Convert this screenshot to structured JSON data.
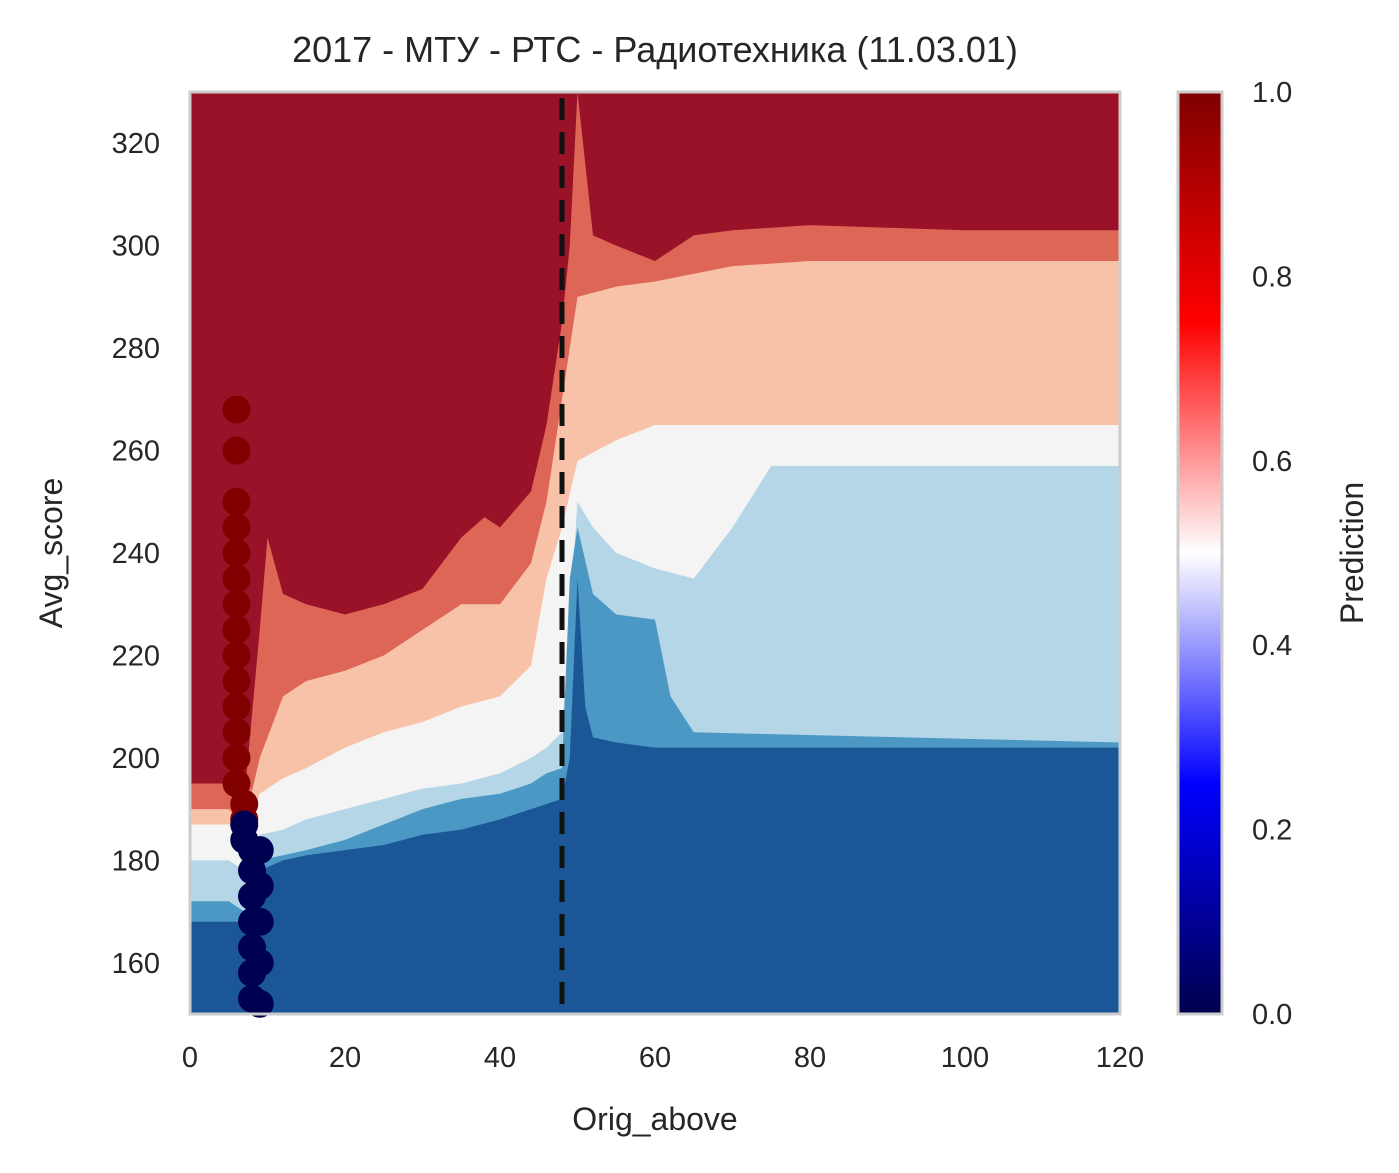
{
  "chart_data": {
    "type": "heatmap",
    "title": "2017 - МТУ - РТС - Радиотехника (11.03.01)",
    "xlabel": "Orig_above",
    "ylabel": "Avg_score",
    "xlim": [
      0,
      120
    ],
    "ylim": [
      150,
      330
    ],
    "x_ticks": [
      0,
      20,
      40,
      60,
      80,
      100,
      120
    ],
    "y_ticks": [
      160,
      180,
      200,
      220,
      240,
      260,
      280,
      300,
      320
    ],
    "grid": false,
    "threshold_line": {
      "x": 48,
      "style": "dashed",
      "color": "#111111"
    },
    "colorbar": {
      "label": "Prediction",
      "range": [
        0.0,
        1.0
      ],
      "ticks": [
        "0.0",
        "0.2",
        "0.4",
        "0.6",
        "0.8",
        "1.0"
      ],
      "colormap": "seismic"
    },
    "levels": [
      {
        "name": "very_low",
        "color": "#1b5797",
        "min": 0.0,
        "max": 0.2
      },
      {
        "name": "low",
        "color": "#4b98c4",
        "min": 0.2,
        "max": 0.35
      },
      {
        "name": "mid_low",
        "color": "#b5d6e7",
        "min": 0.35,
        "max": 0.45
      },
      {
        "name": "mid",
        "color": "#f4f4f4",
        "min": 0.45,
        "max": 0.55
      },
      {
        "name": "mid_high",
        "color": "#f8c2a9",
        "min": 0.55,
        "max": 0.65
      },
      {
        "name": "high",
        "color": "#de6656",
        "min": 0.65,
        "max": 0.8
      },
      {
        "name": "very_high",
        "color": "#9a1228",
        "min": 0.8,
        "max": 1.0
      }
    ],
    "boundaries": {
      "red_upper": [
        [
          0,
          195
        ],
        [
          5,
          195
        ],
        [
          7,
          192
        ],
        [
          9,
          225
        ],
        [
          10,
          243
        ],
        [
          12,
          232
        ],
        [
          15,
          230
        ],
        [
          20,
          228
        ],
        [
          25,
          230
        ],
        [
          30,
          233
        ],
        [
          35,
          243
        ],
        [
          38,
          247
        ],
        [
          40,
          245
        ],
        [
          44,
          252
        ],
        [
          46,
          265
        ],
        [
          47,
          275
        ],
        [
          48,
          285
        ],
        [
          49,
          300
        ],
        [
          50,
          330
        ]
      ],
      "red_upper_right": [
        [
          50,
          330
        ],
        [
          52,
          302
        ],
        [
          55,
          300
        ],
        [
          60,
          297
        ],
        [
          65,
          302
        ],
        [
          70,
          303
        ],
        [
          80,
          304
        ],
        [
          100,
          303
        ],
        [
          120,
          303
        ]
      ],
      "salmon_upper": [
        [
          0,
          190
        ],
        [
          5,
          190
        ],
        [
          7,
          187
        ],
        [
          9,
          200
        ],
        [
          12,
          212
        ],
        [
          15,
          215
        ],
        [
          20,
          217
        ],
        [
          25,
          220
        ],
        [
          30,
          225
        ],
        [
          35,
          230
        ],
        [
          40,
          230
        ],
        [
          44,
          238
        ],
        [
          46,
          250
        ],
        [
          48,
          270
        ],
        [
          50,
          290
        ],
        [
          55,
          292
        ],
        [
          60,
          293
        ],
        [
          70,
          296
        ],
        [
          80,
          297
        ],
        [
          100,
          297
        ],
        [
          120,
          297
        ]
      ],
      "white_upper": [
        [
          0,
          187
        ],
        [
          5,
          187
        ],
        [
          7,
          184
        ],
        [
          9,
          193
        ],
        [
          12,
          196
        ],
        [
          15,
          198
        ],
        [
          20,
          202
        ],
        [
          25,
          205
        ],
        [
          30,
          207
        ],
        [
          35,
          210
        ],
        [
          40,
          212
        ],
        [
          44,
          218
        ],
        [
          46,
          235
        ],
        [
          48,
          245
        ],
        [
          50,
          258
        ],
        [
          55,
          262
        ],
        [
          60,
          265
        ],
        [
          70,
          265
        ],
        [
          80,
          265
        ],
        [
          90,
          265
        ],
        [
          100,
          265
        ],
        [
          120,
          265
        ]
      ],
      "lightblue_upper": [
        [
          0,
          180
        ],
        [
          5,
          180
        ],
        [
          7,
          178
        ],
        [
          9,
          185
        ],
        [
          12,
          186
        ],
        [
          15,
          188
        ],
        [
          20,
          190
        ],
        [
          25,
          192
        ],
        [
          30,
          194
        ],
        [
          35,
          195
        ],
        [
          40,
          197
        ],
        [
          44,
          200
        ],
        [
          46,
          202
        ],
        [
          48,
          205
        ],
        [
          50,
          250
        ],
        [
          52,
          245
        ],
        [
          55,
          240
        ],
        [
          60,
          237
        ],
        [
          65,
          235
        ],
        [
          70,
          245
        ],
        [
          75,
          257
        ],
        [
          100,
          257
        ],
        [
          120,
          257
        ]
      ],
      "blue_upper": [
        [
          0,
          172
        ],
        [
          5,
          172
        ],
        [
          7,
          170
        ],
        [
          9,
          180
        ],
        [
          12,
          181
        ],
        [
          15,
          182
        ],
        [
          20,
          184
        ],
        [
          25,
          187
        ],
        [
          30,
          190
        ],
        [
          35,
          192
        ],
        [
          40,
          193
        ],
        [
          44,
          195
        ],
        [
          46,
          197
        ],
        [
          48,
          198
        ],
        [
          49,
          235
        ],
        [
          50,
          245
        ],
        [
          52,
          232
        ],
        [
          55,
          228
        ],
        [
          60,
          227
        ],
        [
          62,
          212
        ],
        [
          65,
          205
        ],
        [
          120,
          203
        ]
      ],
      "navy_upper": [
        [
          0,
          168
        ],
        [
          5,
          168
        ],
        [
          7,
          168
        ],
        [
          9,
          178
        ],
        [
          12,
          180
        ],
        [
          15,
          181
        ],
        [
          20,
          182
        ],
        [
          25,
          183
        ],
        [
          30,
          185
        ],
        [
          35,
          186
        ],
        [
          40,
          188
        ],
        [
          44,
          190
        ],
        [
          46,
          191
        ],
        [
          48,
          192
        ],
        [
          49,
          200
        ],
        [
          50,
          235
        ],
        [
          51,
          210
        ],
        [
          52,
          204
        ],
        [
          55,
          203
        ],
        [
          60,
          202
        ],
        [
          120,
          202
        ]
      ]
    },
    "scatter": {
      "series": [
        {
          "name": "positive",
          "color": "#800000",
          "points": [
            [
              6,
              268
            ],
            [
              6,
              260
            ],
            [
              6,
              250
            ],
            [
              6,
              245
            ],
            [
              6,
              240
            ],
            [
              6,
              235
            ],
            [
              6,
              230
            ],
            [
              6,
              225
            ],
            [
              6,
              220
            ],
            [
              6,
              215
            ],
            [
              6,
              210
            ],
            [
              6,
              205
            ],
            [
              6,
              200
            ],
            [
              6,
              195
            ],
            [
              7,
              191
            ],
            [
              7,
              188
            ]
          ]
        },
        {
          "name": "negative",
          "color": "#000050",
          "points": [
            [
              7,
              187
            ],
            [
              7,
              184
            ],
            [
              8,
              182
            ],
            [
              8,
              178
            ],
            [
              8,
              173
            ],
            [
              8,
              168
            ],
            [
              8,
              163
            ],
            [
              8,
              158
            ],
            [
              8,
              153
            ],
            [
              9,
              182
            ],
            [
              9,
              175
            ],
            [
              9,
              168
            ],
            [
              9,
              160
            ],
            [
              9,
              152
            ]
          ]
        }
      ]
    }
  }
}
